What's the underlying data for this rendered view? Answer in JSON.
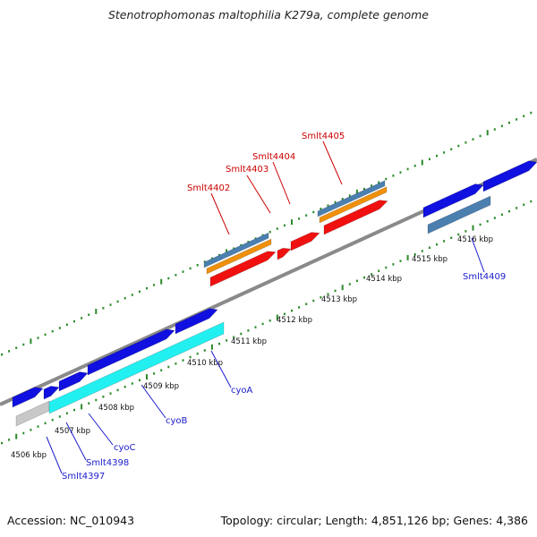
{
  "title": "Stenotrophomonas maltophilia K279a, complete genome",
  "footer": {
    "accession": "Accession: NC_010943",
    "summary": "Topology: circular; Length: 4,851,126 bp; Genes: 4,386"
  },
  "colors": {
    "backbone": "#8a8a8a",
    "tick": "#2a8a2a",
    "cds_blue": "#1010e0",
    "cds_cyan": "#22f0f0",
    "cds_red": "#f01010",
    "cds_orange": "#f0900a",
    "cds_steel": "#4a7fb0",
    "cds_grey": "#c8c8c8",
    "label_red": "#cc0000",
    "label_blue": "#1a1acc"
  },
  "scale_labels": [
    "4506 kbp",
    "4507 kbp",
    "4508 kbp",
    "4509 kbp",
    "4510 kbp",
    "4511 kbp",
    "4512 kbp",
    "4513 kbp",
    "4514 kbp",
    "4515 kbp",
    "4516 kbp"
  ],
  "gene_labels": {
    "red": [
      "Smlt4402",
      "Smlt4403",
      "Smlt4404",
      "Smlt4405"
    ],
    "blue": [
      "Smlt4397",
      "Smlt4398",
      "cyoC",
      "cyoB",
      "cyoA",
      "Smlt4409"
    ]
  }
}
